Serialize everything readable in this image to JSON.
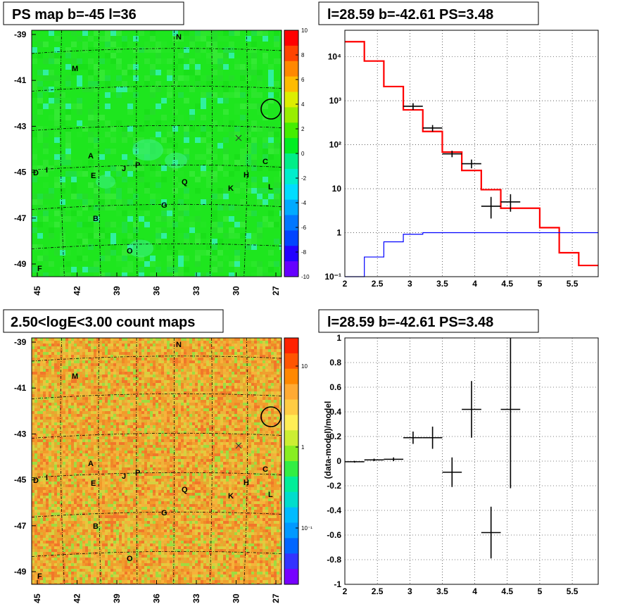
{
  "panels": {
    "tl_title": "PS map b=-45 l=36",
    "tr_title": "l=28.59 b=-42.61 PS=3.48",
    "bl_title": "2.50<logE<3.00 count maps",
    "br_title": "l=28.59 b=-42.61 PS=3.48"
  },
  "maps": {
    "y_ticks": [
      "-39",
      "-41",
      "-43",
      "-45",
      "-47",
      "-49"
    ],
    "x_ticks": [
      "45",
      "42",
      "39",
      "36",
      "33",
      "30",
      "27"
    ],
    "sources": [
      {
        "label": "N"
      },
      {
        "label": "M"
      },
      {
        "label": "A"
      },
      {
        "label": "E"
      },
      {
        "label": "J"
      },
      {
        "label": "P"
      },
      {
        "label": "D"
      },
      {
        "label": "I"
      },
      {
        "label": "C"
      },
      {
        "label": "H"
      },
      {
        "label": "K"
      },
      {
        "label": "L"
      },
      {
        "label": "Q"
      },
      {
        "label": "G"
      },
      {
        "label": "B"
      },
      {
        "label": "O"
      },
      {
        "label": "F"
      }
    ],
    "ps_colorbar": [
      "10",
      "8",
      "6",
      "4",
      "2",
      "0",
      "-2",
      "-4",
      "-6",
      "-8",
      "-10"
    ],
    "count_colorbar": [
      "10",
      "1",
      "10⁻¹"
    ]
  },
  "chart_data": [
    {
      "type": "line",
      "title": "l=28.59 b=-42.61 PS=3.48",
      "xlabel": "",
      "ylabel": "",
      "xlim": [
        2,
        5.9
      ],
      "ylim": [
        0.1,
        40000
      ],
      "y_scale": "log",
      "x_ticks": [
        "2",
        "2.5",
        "3",
        "3.5",
        "4",
        "4.5",
        "5",
        "5.5"
      ],
      "y_ticks": [
        "10⁻¹",
        "1",
        "10",
        "10²",
        "10³",
        "10⁴"
      ],
      "grid": true,
      "series": [
        {
          "color": "#ff0000",
          "kind": "step",
          "edges": [
            2.0,
            2.3,
            2.6,
            2.9,
            3.2,
            3.5,
            3.8,
            4.1,
            4.4,
            4.7,
            5.0,
            5.3,
            5.6,
            5.9
          ],
          "values": [
            22000,
            8000,
            2100,
            620,
            200,
            68,
            26,
            9.5,
            3.6,
            3.6,
            1.3,
            0.35,
            0.18
          ]
        },
        {
          "color": "#0000ff",
          "kind": "step",
          "edges": [
            2.0,
            2.3,
            2.6,
            2.9,
            3.2,
            5.9
          ],
          "values": [
            0.1,
            0.28,
            0.62,
            0.92,
            1.0
          ]
        },
        {
          "color": "#000000",
          "kind": "errorbar",
          "points": [
            {
              "x": 3.05,
              "y": 750,
              "xerr": 0.15,
              "ylo": 620,
              "yhi": 880
            },
            {
              "x": 3.35,
              "y": 240,
              "xerr": 0.15,
              "ylo": 200,
              "yhi": 280
            },
            {
              "x": 3.65,
              "y": 62,
              "xerr": 0.15,
              "ylo": 52,
              "yhi": 73
            },
            {
              "x": 3.95,
              "y": 37,
              "xerr": 0.15,
              "ylo": 29,
              "yhi": 46
            },
            {
              "x": 4.25,
              "y": 4,
              "xerr": 0.15,
              "ylo": 2.1,
              "yhi": 6.5
            },
            {
              "x": 4.55,
              "y": 5,
              "xerr": 0.15,
              "ylo": 3,
              "yhi": 7.5
            }
          ]
        }
      ]
    },
    {
      "type": "scatter",
      "title": "l=28.59 b=-42.61 PS=3.48",
      "xlabel": "",
      "ylabel": "(data-model)/model",
      "xlim": [
        2,
        5.9
      ],
      "ylim": [
        -1,
        1
      ],
      "x_ticks": [
        "2",
        "2.5",
        "3",
        "3.5",
        "4",
        "4.5",
        "5",
        "5.5"
      ],
      "y_ticks": [
        "-1",
        "-0.8",
        "-0.6",
        "-0.4",
        "-0.2",
        "0",
        "0.2",
        "0.4",
        "0.6",
        "0.8",
        "1"
      ],
      "grid": true,
      "points": [
        {
          "x": 2.15,
          "y": -0.005,
          "xerr": 0.15,
          "ylo": -0.012,
          "yhi": 0.002
        },
        {
          "x": 2.45,
          "y": 0.01,
          "xerr": 0.15,
          "ylo": 0.0,
          "yhi": 0.02
        },
        {
          "x": 2.75,
          "y": 0.015,
          "xerr": 0.15,
          "ylo": 0.0,
          "yhi": 0.03
        },
        {
          "x": 3.05,
          "y": 0.19,
          "xerr": 0.15,
          "ylo": 0.14,
          "yhi": 0.24
        },
        {
          "x": 3.35,
          "y": 0.19,
          "xerr": 0.15,
          "ylo": 0.1,
          "yhi": 0.28
        },
        {
          "x": 3.65,
          "y": -0.09,
          "xerr": 0.15,
          "ylo": -0.21,
          "yhi": 0.03
        },
        {
          "x": 3.95,
          "y": 0.42,
          "xerr": 0.15,
          "ylo": 0.19,
          "yhi": 0.65
        },
        {
          "x": 4.25,
          "y": -0.58,
          "xerr": 0.15,
          "ylo": -0.79,
          "yhi": -0.37
        },
        {
          "x": 4.55,
          "y": 0.42,
          "xerr": 0.15,
          "ylo": -0.22,
          "yhi": 1.0
        }
      ]
    }
  ],
  "colors": {
    "ps_bg": "#1ee61e",
    "count_bg": "#f0a030",
    "frame": "#000000",
    "red_line": "#ff0000",
    "blue_line": "#0000ff"
  }
}
